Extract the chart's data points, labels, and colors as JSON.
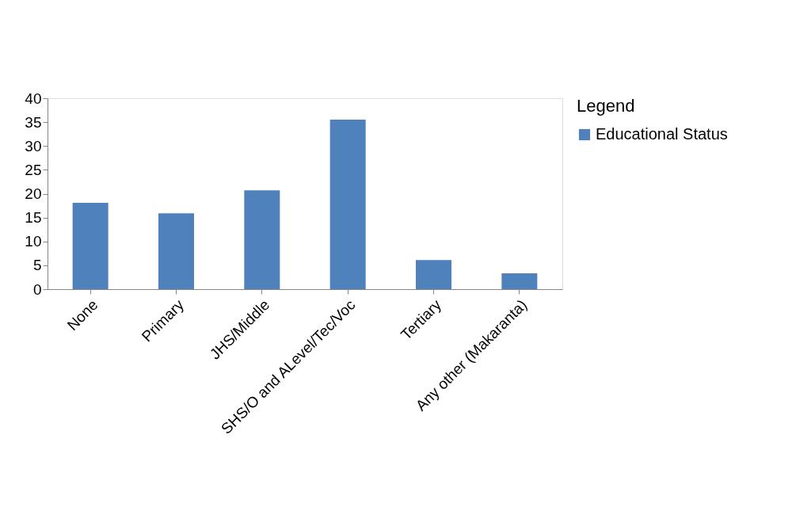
{
  "chart_data": {
    "type": "bar",
    "categories": [
      "None",
      "Primary",
      "JHS/Middle",
      "SHS/O and ALevel/Tec/Voc",
      "Tertiary",
      "Any other (Makaranta)"
    ],
    "series": [
      {
        "name": "Educational Status",
        "color": "#4f81bd",
        "values": [
          18.1,
          15.9,
          20.7,
          35.5,
          6.1,
          3.3
        ]
      }
    ],
    "ylim": [
      0,
      40
    ],
    "yticks": [
      0,
      5,
      10,
      15,
      20,
      25,
      30,
      35,
      40
    ],
    "grid": false,
    "legend": "right",
    "legend_title": "Legend"
  }
}
